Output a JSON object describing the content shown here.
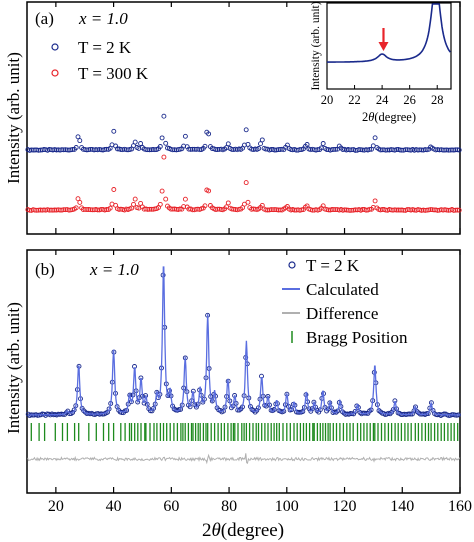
{
  "figure": {
    "x_axis_label_prefix": "2",
    "x_axis_label_theta": "θ",
    "x_axis_label_suffix": "(degree)"
  },
  "chart_data": [
    {
      "panel": "(a)",
      "type": "scatter",
      "composition_label": "x = 1.0",
      "ylabel": "Intensity (arb. unit)",
      "xlim": [
        10,
        160
      ],
      "legend_placement": "top-left",
      "series": [
        {
          "name": "T = 2 K",
          "marker": "open circle",
          "color": "#1a2a8c",
          "baseline": 0.2,
          "peaks": [
            {
              "x": 27.9,
              "h": 0.26
            },
            {
              "x": 40.0,
              "h": 0.26
            },
            {
              "x": 47.3,
              "h": 0.14
            },
            {
              "x": 49.5,
              "h": 0.1
            },
            {
              "x": 57.3,
              "h": 0.5
            },
            {
              "x": 64.8,
              "h": 0.18
            },
            {
              "x": 72.6,
              "h": 0.4
            },
            {
              "x": 79.6,
              "h": 0.1
            },
            {
              "x": 86.0,
              "h": 0.28
            },
            {
              "x": 91.3,
              "h": 0.18
            },
            {
              "x": 100.0,
              "h": 0.08
            },
            {
              "x": 106.8,
              "h": 0.1
            },
            {
              "x": 112.5,
              "h": 0.09
            },
            {
              "x": 118.4,
              "h": 0.07
            },
            {
              "x": 130.5,
              "h": 0.17
            },
            {
              "x": 150.0,
              "h": 0.06
            }
          ]
        },
        {
          "name": "T = 300 K",
          "marker": "open circle",
          "color": "#e8242a",
          "baseline": 0.06,
          "peaks": [
            {
              "x": 27.9,
              "h": 0.22
            },
            {
              "x": 40.0,
              "h": 0.28
            },
            {
              "x": 47.3,
              "h": 0.18
            },
            {
              "x": 49.5,
              "h": 0.1
            },
            {
              "x": 57.3,
              "h": 0.78
            },
            {
              "x": 64.8,
              "h": 0.15
            },
            {
              "x": 72.6,
              "h": 0.46
            },
            {
              "x": 79.6,
              "h": 0.1
            },
            {
              "x": 86.0,
              "h": 0.38
            },
            {
              "x": 91.3,
              "h": 0.08
            },
            {
              "x": 100.0,
              "h": 0.06
            },
            {
              "x": 106.8,
              "h": 0.07
            },
            {
              "x": 112.5,
              "h": 0.06
            },
            {
              "x": 130.5,
              "h": 0.13
            }
          ]
        }
      ],
      "inset": {
        "ylabel": "Intensity (arb. unit)",
        "xlabel_prefix": "2",
        "xlabel_theta": "θ",
        "xlabel_suffix": "(degree)",
        "xlim": [
          20,
          29
        ],
        "ticks": [
          20,
          22,
          24,
          26,
          28
        ],
        "tick_labels": [
          "20",
          "22",
          "24",
          "26",
          "28"
        ],
        "arrow_at": 24.1,
        "arrow_color": "#e8242a",
        "series_color": "#1a2a8c",
        "baseline": 0.28,
        "small_peak": {
          "x": 24.0,
          "h": 0.08
        },
        "main_peak": {
          "x": 27.9,
          "h": 0.85
        }
      }
    },
    {
      "panel": "(b)",
      "type": "line",
      "composition_label": "x = 1.0",
      "ylabel": "Intensity (arb. unit)",
      "xlabel": "2θ(degree)",
      "xlim": [
        10,
        160
      ],
      "xticks": [
        20,
        40,
        60,
        80,
        100,
        120,
        140,
        160
      ],
      "xtick_labels": [
        "20",
        "40",
        "60",
        "80",
        "100",
        "120",
        "140",
        "160"
      ],
      "legend_placement": "top-right",
      "legend": [
        {
          "name": "T = 2 K",
          "style": "open circle",
          "color": "#1a2a8c"
        },
        {
          "name": "Calculated",
          "style": "line",
          "color": "#5a6ee0"
        },
        {
          "name": "Difference",
          "style": "line",
          "color": "#b0b0b0"
        },
        {
          "name": "Bragg Position",
          "style": "tick",
          "color": "#1e8a1e"
        }
      ],
      "baseline": 0.17,
      "peaks": [
        {
          "x": 24.0,
          "h": 0.02
        },
        {
          "x": 27.9,
          "h": 0.3
        },
        {
          "x": 40.0,
          "h": 0.38
        },
        {
          "x": 45.5,
          "h": 0.1
        },
        {
          "x": 47.3,
          "h": 0.27
        },
        {
          "x": 49.5,
          "h": 0.2
        },
        {
          "x": 51.2,
          "h": 0.09
        },
        {
          "x": 55.0,
          "h": 0.1
        },
        {
          "x": 57.3,
          "h": 0.9
        },
        {
          "x": 59.6,
          "h": 0.12
        },
        {
          "x": 64.8,
          "h": 0.33
        },
        {
          "x": 67.5,
          "h": 0.12
        },
        {
          "x": 70.0,
          "h": 0.14
        },
        {
          "x": 72.6,
          "h": 0.58
        },
        {
          "x": 75.0,
          "h": 0.12
        },
        {
          "x": 79.6,
          "h": 0.2
        },
        {
          "x": 82.0,
          "h": 0.1
        },
        {
          "x": 86.0,
          "h": 0.43
        },
        {
          "x": 91.3,
          "h": 0.22
        },
        {
          "x": 93.5,
          "h": 0.1
        },
        {
          "x": 96.5,
          "h": 0.08
        },
        {
          "x": 100.0,
          "h": 0.12
        },
        {
          "x": 102.5,
          "h": 0.07
        },
        {
          "x": 106.8,
          "h": 0.13
        },
        {
          "x": 109.5,
          "h": 0.07
        },
        {
          "x": 112.5,
          "h": 0.14
        },
        {
          "x": 115.0,
          "h": 0.07
        },
        {
          "x": 118.4,
          "h": 0.08
        },
        {
          "x": 124.5,
          "h": 0.06
        },
        {
          "x": 130.5,
          "h": 0.3
        },
        {
          "x": 137.5,
          "h": 0.08
        },
        {
          "x": 144.5,
          "h": 0.05
        },
        {
          "x": 150.0,
          "h": 0.07
        }
      ],
      "bragg_positions": [
        11.5,
        14.2,
        16.1,
        19.8,
        22.3,
        24.0,
        26.5,
        27.9,
        31.4,
        34.0,
        36.5,
        38.3,
        40.0,
        42.5,
        44.0,
        45.5,
        46.2,
        47.3,
        48.4,
        49.5,
        50.8,
        51.2,
        52.6,
        54.0,
        55.0,
        56.2,
        57.3,
        58.4,
        59.6,
        60.9,
        62.1,
        63.3,
        64.0,
        64.8,
        65.9,
        67.0,
        67.5,
        68.4,
        69.3,
        70.0,
        71.1,
        72.0,
        72.6,
        73.8,
        75.0,
        76.2,
        77.3,
        78.4,
        79.6,
        80.7,
        81.5,
        82.0,
        83.1,
        84.4,
        85.2,
        86.0,
        87.1,
        88.3,
        89.4,
        90.2,
        91.3,
        92.4,
        93.5,
        94.6,
        95.6,
        96.5,
        97.4,
        98.7,
        100.0,
        101.2,
        102.5,
        103.6,
        104.7,
        105.8,
        106.8,
        107.9,
        109.0,
        109.5,
        110.6,
        111.6,
        112.5,
        113.4,
        114.3,
        115.0,
        116.1,
        117.2,
        118.4,
        119.6,
        120.8,
        121.9,
        123.0,
        124.5,
        125.6,
        126.7,
        127.8,
        128.9,
        130.0,
        130.5,
        131.6,
        132.8,
        134.0,
        135.2,
        136.3,
        137.5,
        138.6,
        139.7,
        140.9,
        142.0,
        143.1,
        144.5,
        145.6,
        146.8,
        148.0,
        149.1,
        150.0,
        151.2,
        152.3,
        153.5,
        154.6,
        155.8,
        156.9,
        158.0,
        159.2
      ],
      "difference_offset": -0.08,
      "difference_feature_x": [
        57.3,
        72.6,
        86.0,
        130.5
      ]
    }
  ]
}
